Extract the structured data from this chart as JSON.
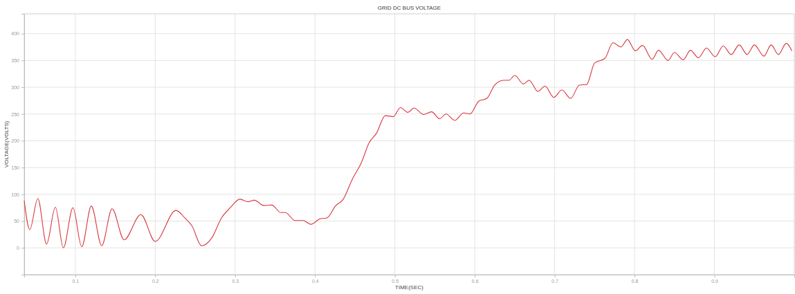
{
  "chart_data": {
    "type": "line",
    "title": "GRID DC BUS VOLTAGE",
    "xlabel": "TIME(SEC)",
    "ylabel": "VOLTAGE(VOLTS)",
    "xlim": [
      0.036,
      1.0
    ],
    "ylim": [
      -50,
      437
    ],
    "xticks": [
      0.1,
      0.2,
      0.3,
      0.4,
      0.5,
      0.6,
      0.7,
      0.8,
      0.9
    ],
    "yticks": [
      0,
      50,
      100,
      150,
      200,
      250,
      300,
      350,
      400
    ],
    "grid": true,
    "line_style": "solid",
    "marker": "none",
    "series": [
      {
        "color": "#d9363e",
        "x": [
          0.036,
          0.043,
          0.053,
          0.064,
          0.075,
          0.085,
          0.097,
          0.108,
          0.12,
          0.133,
          0.146,
          0.161,
          0.182,
          0.2,
          0.226,
          0.237,
          0.246,
          0.258,
          0.271,
          0.283,
          0.294,
          0.306,
          0.316,
          0.324,
          0.336,
          0.346,
          0.357,
          0.363,
          0.375,
          0.385,
          0.395,
          0.406,
          0.415,
          0.426,
          0.435,
          0.447,
          0.458,
          0.468,
          0.477,
          0.488,
          0.498,
          0.507,
          0.516,
          0.524,
          0.536,
          0.546,
          0.556,
          0.564,
          0.575,
          0.586,
          0.594,
          0.605,
          0.615,
          0.625,
          0.636,
          0.643,
          0.65,
          0.661,
          0.668,
          0.679,
          0.688,
          0.699,
          0.709,
          0.72,
          0.731,
          0.74,
          0.75,
          0.763,
          0.773,
          0.783,
          0.791,
          0.801,
          0.81,
          0.822,
          0.83,
          0.842,
          0.85,
          0.861,
          0.87,
          0.88,
          0.89,
          0.901,
          0.911,
          0.921,
          0.931,
          0.941,
          0.95,
          0.962,
          0.971,
          0.98,
          0.99,
          0.997
        ],
        "values": [
          88,
          34,
          92,
          7,
          76,
          0,
          75,
          2,
          78,
          4,
          73,
          15,
          62,
          12,
          70,
          56,
          41,
          4,
          19,
          56,
          75,
          91,
          86,
          89,
          79,
          80,
          66,
          66,
          51,
          51,
          44,
          54,
          56,
          79,
          90,
          129,
          159,
          197,
          214,
          247,
          245,
          262,
          253,
          261,
          249,
          254,
          241,
          250,
          238,
          252,
          250,
          274,
          279,
          304,
          313,
          313,
          322,
          306,
          313,
          292,
          302,
          281,
          295,
          279,
          304,
          305,
          345,
          354,
          383,
          375,
          389,
          368,
          378,
          352,
          369,
          350,
          365,
          351,
          369,
          355,
          373,
          357,
          377,
          361,
          379,
          361,
          379,
          358,
          379,
          361,
          382,
          368
        ]
      }
    ]
  }
}
